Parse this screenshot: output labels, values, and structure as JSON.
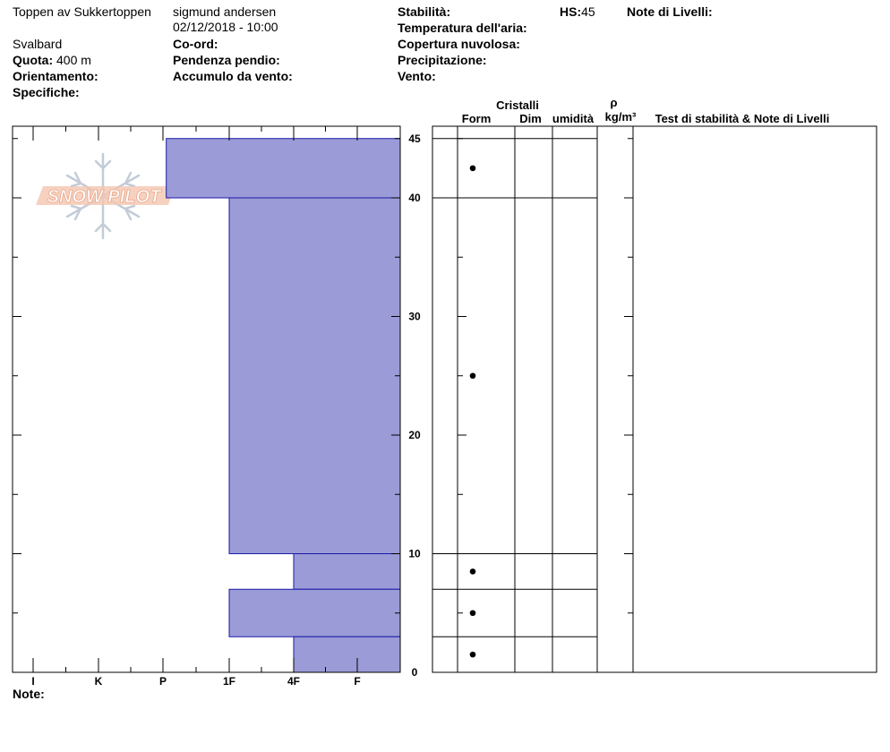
{
  "header": {
    "location": "Toppen av Sukkertoppen",
    "observer": "sigmund andersen",
    "datetime": "02/12/2018 - 10:00",
    "region": "Svalbard",
    "elevation_label": "Quota:",
    "elevation_value": "400 m",
    "aspect_label": "Orientamento:",
    "specifics_label": "Specifiche:",
    "coords_label": "Co-ord:",
    "slope_label": "Pendenza pendio:",
    "wind_loading_label": "Accumulo da vento:",
    "stability_label": "Stabilità:",
    "air_temp_label": "Temperatura dell'aria:",
    "sky_label": "Copertura nuvolosa:",
    "precip_label": "Precipitazione:",
    "wind_label": "Vento:",
    "hs_label": "HS:",
    "hs_value": "45",
    "layer_notes_label": "Note di Livelli:"
  },
  "columns": {
    "crystals": "Cristalli",
    "form": "Form",
    "size": "Dim",
    "moisture": "umidità",
    "density_symbol": "ρ",
    "density_unit": "kg/m³",
    "tests": "Test di stabilità & Note di Livelli"
  },
  "notes_label": "Note:",
  "logo": {
    "text": "SNOW PILOT",
    "color": "#f2b49a"
  },
  "chart_data": {
    "type": "bar",
    "orientation": "horizontal",
    "description_axes": "hardness profile by height",
    "bar_color": "#9b9bd7",
    "bar_edge_color": "#1a1aa8",
    "x_categories": [
      "I",
      "K",
      "P",
      "1F",
      "4F",
      "F"
    ],
    "y_axis": {
      "min": 0,
      "max": 45,
      "ticks": [
        0,
        10,
        20,
        30,
        40,
        45
      ],
      "minor_step": 5
    },
    "layers": [
      {
        "bottom": 40,
        "top": 45,
        "hardness": "P+"
      },
      {
        "bottom": 10,
        "top": 40,
        "hardness": "1F"
      },
      {
        "bottom": 7,
        "top": 10,
        "hardness": "4F"
      },
      {
        "bottom": 3,
        "top": 7,
        "hardness": "1F"
      },
      {
        "bottom": 0,
        "top": 3,
        "hardness": "4F"
      }
    ],
    "layer_hardness_index": [
      3.05,
      4,
      5,
      4,
      5
    ],
    "layer_boundaries": [
      45,
      40,
      10,
      7,
      3,
      0
    ],
    "form_markers": [
      42.5,
      25,
      8.5,
      5,
      1.5
    ]
  }
}
